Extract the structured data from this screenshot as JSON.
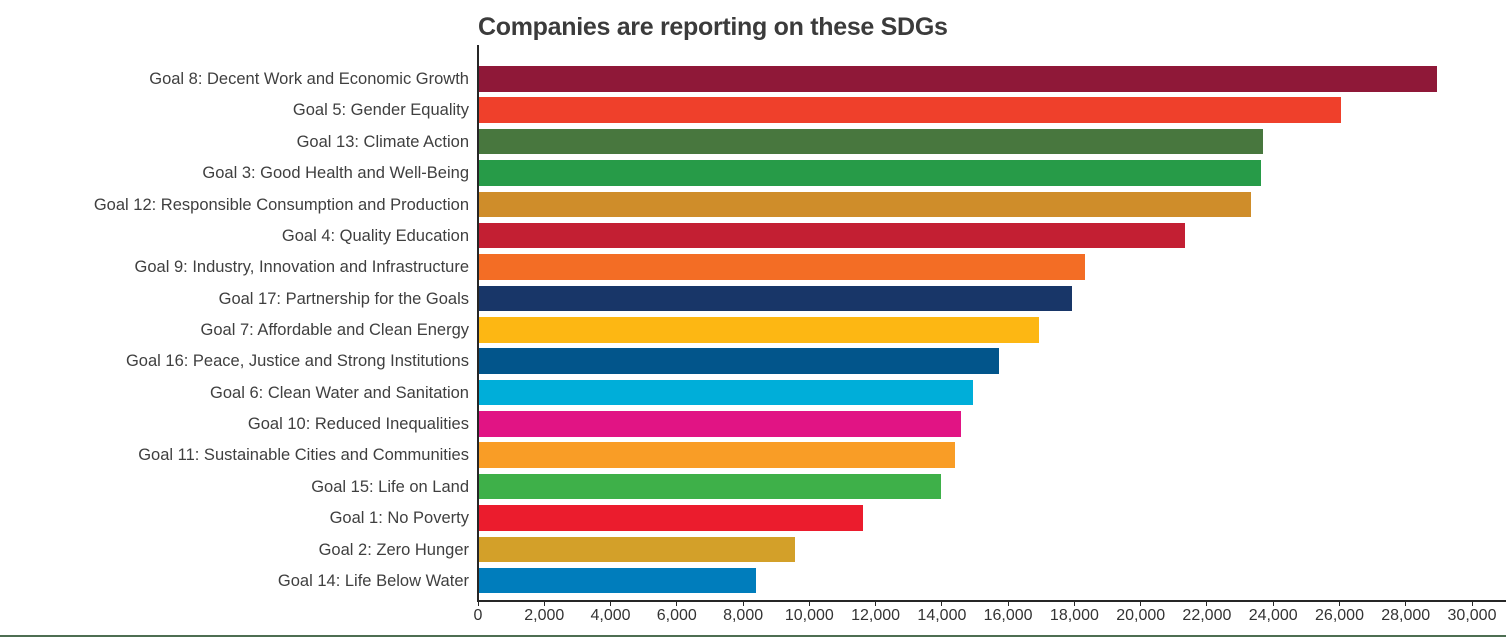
{
  "page": {
    "background": "#ffffff"
  },
  "chart_data": {
    "type": "bar",
    "orientation": "horizontal",
    "title": "Companies are reporting on these SDGs",
    "xlabel": "",
    "ylabel": "",
    "xlim": [
      0,
      30000
    ],
    "grid": "off",
    "legend": "none",
    "categories": [
      "Goal 8: Decent Work and Economic Growth",
      "Goal 5: Gender Equality",
      "Goal 13: Climate Action",
      "Goal 3: Good Health and Well-Being",
      "Goal 12: Responsible Consumption and Production",
      "Goal 4: Quality Education",
      "Goal 9: Industry, Innovation and Infrastructure",
      "Goal 17: Partnership for the Goals",
      "Goal 7: Affordable and Clean Energy",
      "Goal 16: Peace, Justice and Strong Institutions",
      "Goal 6: Clean Water and Sanitation",
      "Goal 10: Reduced Inequalities",
      "Goal 11: Sustainable Cities and Communities",
      "Goal 15: Life on Land",
      "Goal 1: No Poverty",
      "Goal 2: Zero Hunger",
      "Goal 14: Life Below Water"
    ],
    "values": [
      28900,
      26000,
      23650,
      23600,
      23300,
      21300,
      18300,
      17900,
      16900,
      15700,
      14900,
      14550,
      14350,
      13950,
      11600,
      9550,
      8350
    ],
    "colors": [
      "#8F1838",
      "#EF402B",
      "#48773E",
      "#279B48",
      "#CF8D2A",
      "#C31F33",
      "#F36D25",
      "#183668",
      "#FDB713",
      "#02558B",
      "#00AED9",
      "#E11484",
      "#F99D26",
      "#3EB049",
      "#EB1C2D",
      "#D3A029",
      "#007DBC"
    ],
    "x_ticks": [
      0,
      2000,
      4000,
      6000,
      8000,
      10000,
      12000,
      14000,
      16000,
      18000,
      20000,
      22000,
      24000,
      26000,
      28000,
      30000
    ],
    "x_tick_labels": [
      "0",
      "2,000",
      "4,000",
      "6,000",
      "8,000",
      "10,000",
      "12,000",
      "14,000",
      "16,000",
      "18,000",
      "20,000",
      "22,000",
      "24,000",
      "26,000",
      "28,000",
      "30,000"
    ]
  },
  "styles": {
    "title_color": "#3b3b3b",
    "category_label_color": "#3f3f3f",
    "tick_label_color": "#333333",
    "axis_color": "#262626",
    "bottom_rule_color": "#4d6e52"
  }
}
